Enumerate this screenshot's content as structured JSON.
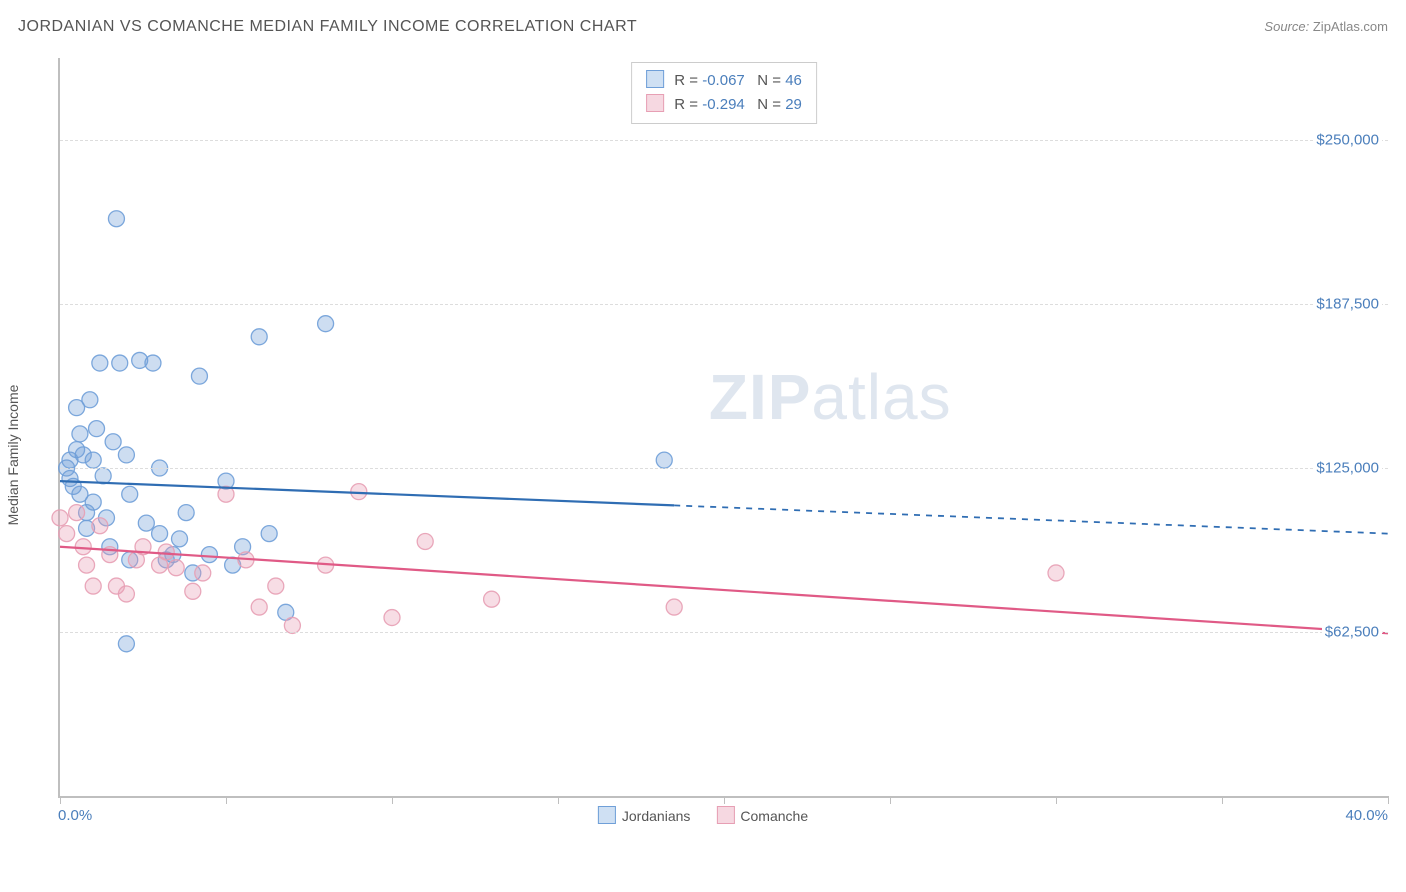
{
  "header": {
    "title": "JORDANIAN VS COMANCHE MEDIAN FAMILY INCOME CORRELATION CHART",
    "source_label": "Source:",
    "source_value": "ZipAtlas.com"
  },
  "watermark": {
    "zip": "ZIP",
    "atlas": "atlas"
  },
  "chart": {
    "type": "scatter",
    "y_axis_label": "Median Family Income",
    "background_color": "#ffffff",
    "grid_color": "#dddddd",
    "axis_color": "#bfbfbf",
    "label_color_value": "#4a7ebb",
    "label_color_text": "#555555",
    "label_fontsize": 15,
    "xlim": [
      0,
      40
    ],
    "x_tick_step": 5,
    "x_min_label": "0.0%",
    "x_max_label": "40.0%",
    "ylim": [
      0,
      281250
    ],
    "y_gridlines": [
      {
        "value": 62500,
        "label": "$62,500"
      },
      {
        "value": 125000,
        "label": "$125,000"
      },
      {
        "value": 187500,
        "label": "$187,500"
      },
      {
        "value": 250000,
        "label": "$250,000"
      }
    ],
    "marker_radius": 8,
    "marker_fill_opacity": 0.35,
    "marker_stroke_opacity": 0.9,
    "line_width": 2.2,
    "series": [
      {
        "id": "jordanians",
        "label": "Jordanians",
        "color": "#6f9fd8",
        "line_color": "#2f6db3",
        "R": "-0.067",
        "N": "46",
        "trend": {
          "x1": 0,
          "y1": 120000,
          "x2": 40,
          "y2": 100000,
          "solid_until_x": 18.5
        },
        "points": [
          [
            0.2,
            125000
          ],
          [
            0.3,
            128000
          ],
          [
            0.3,
            121000
          ],
          [
            0.4,
            118000
          ],
          [
            0.5,
            132000
          ],
          [
            0.5,
            148000
          ],
          [
            0.6,
            115000
          ],
          [
            0.6,
            138000
          ],
          [
            0.7,
            130000
          ],
          [
            0.8,
            108000
          ],
          [
            0.8,
            102000
          ],
          [
            0.9,
            151000
          ],
          [
            1.0,
            128000
          ],
          [
            1.0,
            112000
          ],
          [
            1.1,
            140000
          ],
          [
            1.2,
            165000
          ],
          [
            1.3,
            122000
          ],
          [
            1.4,
            106000
          ],
          [
            1.5,
            95000
          ],
          [
            1.6,
            135000
          ],
          [
            1.8,
            165000
          ],
          [
            2.0,
            58000
          ],
          [
            2.0,
            130000
          ],
          [
            2.1,
            115000
          ],
          [
            2.4,
            166000
          ],
          [
            2.6,
            104000
          ],
          [
            2.8,
            165000
          ],
          [
            3.0,
            100000
          ],
          [
            3.2,
            90000
          ],
          [
            3.4,
            92000
          ],
          [
            3.8,
            108000
          ],
          [
            4.0,
            85000
          ],
          [
            4.2,
            160000
          ],
          [
            4.5,
            92000
          ],
          [
            5.0,
            120000
          ],
          [
            5.2,
            88000
          ],
          [
            5.5,
            95000
          ],
          [
            6.0,
            175000
          ],
          [
            6.3,
            100000
          ],
          [
            6.8,
            70000
          ],
          [
            8.0,
            180000
          ],
          [
            1.7,
            220000
          ],
          [
            2.1,
            90000
          ],
          [
            3.0,
            125000
          ],
          [
            3.6,
            98000
          ],
          [
            18.2,
            128000
          ]
        ]
      },
      {
        "id": "comanche",
        "label": "Comanche",
        "color": "#e79fb4",
        "line_color": "#e05a86",
        "R": "-0.294",
        "N": "29",
        "trend": {
          "x1": 0,
          "y1": 95000,
          "x2": 40,
          "y2": 62000,
          "solid_until_x": 40
        },
        "points": [
          [
            0.0,
            106000
          ],
          [
            0.2,
            100000
          ],
          [
            0.5,
            108000
          ],
          [
            0.7,
            95000
          ],
          [
            0.8,
            88000
          ],
          [
            1.0,
            80000
          ],
          [
            1.2,
            103000
          ],
          [
            1.5,
            92000
          ],
          [
            1.7,
            80000
          ],
          [
            2.0,
            77000
          ],
          [
            2.3,
            90000
          ],
          [
            2.5,
            95000
          ],
          [
            3.0,
            88000
          ],
          [
            3.2,
            93000
          ],
          [
            3.5,
            87000
          ],
          [
            4.0,
            78000
          ],
          [
            4.3,
            85000
          ],
          [
            5.0,
            115000
          ],
          [
            5.6,
            90000
          ],
          [
            6.0,
            72000
          ],
          [
            6.5,
            80000
          ],
          [
            7.0,
            65000
          ],
          [
            8.0,
            88000
          ],
          [
            9.0,
            116000
          ],
          [
            10.0,
            68000
          ],
          [
            11.0,
            97000
          ],
          [
            13.0,
            75000
          ],
          [
            18.5,
            72000
          ],
          [
            30.0,
            85000
          ]
        ]
      }
    ],
    "bottom_legend": [
      {
        "swatch_fill": "#cfe0f3",
        "swatch_border": "#6f9fd8",
        "label": "Jordanians"
      },
      {
        "swatch_fill": "#f6d8e1",
        "swatch_border": "#e79fb4",
        "label": "Comanche"
      }
    ]
  }
}
